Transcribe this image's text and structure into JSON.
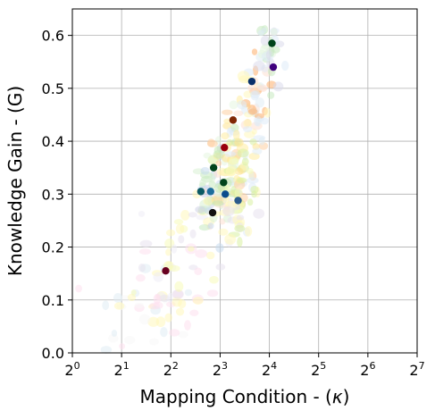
{
  "chart_data": {
    "type": "scatter",
    "title": "",
    "xlabel_main": "Mapping Condition - (",
    "xlabel_symbol": "κ",
    "xlabel_end": ")",
    "ylabel": "Knowledge Gain - (G)",
    "x_scale": "log2",
    "xlim": [
      1,
      128
    ],
    "ylim": [
      0,
      0.65
    ],
    "x_ticks": [
      {
        "value": 1,
        "base": "2",
        "exp": "0"
      },
      {
        "value": 2,
        "base": "2",
        "exp": "1"
      },
      {
        "value": 4,
        "base": "2",
        "exp": "2"
      },
      {
        "value": 8,
        "base": "2",
        "exp": "3"
      },
      {
        "value": 16,
        "base": "2",
        "exp": "4"
      },
      {
        "value": 32,
        "base": "2",
        "exp": "5"
      },
      {
        "value": 64,
        "base": "2",
        "exp": "6"
      },
      {
        "value": 128,
        "base": "2",
        "exp": "7"
      }
    ],
    "y_ticks": [
      {
        "value": 0.0,
        "label": "0.0"
      },
      {
        "value": 0.1,
        "label": "0.1"
      },
      {
        "value": 0.2,
        "label": "0.2"
      },
      {
        "value": 0.3,
        "label": "0.3"
      },
      {
        "value": 0.4,
        "label": "0.4"
      },
      {
        "value": 0.5,
        "label": "0.5"
      },
      {
        "value": 0.6,
        "label": "0.6"
      }
    ],
    "grid": true,
    "highlighted_points": [
      {
        "x": 3.72,
        "y": 0.155,
        "color": "#67001f"
      },
      {
        "x": 7.2,
        "y": 0.265,
        "color": "#111111"
      },
      {
        "x": 6.1,
        "y": 0.305,
        "color": "#0b5a64"
      },
      {
        "x": 7.0,
        "y": 0.305,
        "color": "#1f6e9c"
      },
      {
        "x": 8.6,
        "y": 0.3,
        "color": "#0b4d8c"
      },
      {
        "x": 10.3,
        "y": 0.288,
        "color": "#2b5a8c"
      },
      {
        "x": 8.4,
        "y": 0.322,
        "color": "#00441b"
      },
      {
        "x": 7.3,
        "y": 0.35,
        "color": "#00441b"
      },
      {
        "x": 8.5,
        "y": 0.388,
        "color": "#99000d"
      },
      {
        "x": 9.6,
        "y": 0.44,
        "color": "#7f2704"
      },
      {
        "x": 12.5,
        "y": 0.513,
        "color": "#08306b"
      },
      {
        "x": 16.9,
        "y": 0.54,
        "color": "#3f007d"
      },
      {
        "x": 16.6,
        "y": 0.585,
        "color": "#00441b"
      }
    ],
    "clouds": [
      {
        "cx": 3.0,
        "cy": 0.075,
        "sx": 0.55,
        "sy": 0.05,
        "n": 40,
        "colors": [
          "#fde0ef",
          "#fff7bc",
          "#e0ecf4",
          "#f7f7f7"
        ]
      },
      {
        "cx": 4.6,
        "cy": 0.17,
        "sx": 0.45,
        "sy": 0.055,
        "n": 45,
        "colors": [
          "#fde0ef",
          "#fff7bc",
          "#e7e1ef",
          "#f7fcb9",
          "#efedf5"
        ]
      },
      {
        "cx": 7.3,
        "cy": 0.3,
        "sx": 0.22,
        "sy": 0.035,
        "n": 55,
        "colors": [
          "#c6dbef",
          "#d9f0d3",
          "#fee0d2",
          "#c7e9c0",
          "#fff7bc",
          "#d0d1e6"
        ]
      },
      {
        "cx": 9.8,
        "cy": 0.36,
        "sx": 0.22,
        "sy": 0.05,
        "n": 90,
        "colors": [
          "#fff7bc",
          "#ffeda0",
          "#fee391",
          "#d9f0a3",
          "#c7e9b4",
          "#fdd0a2",
          "#e5f5e0",
          "#deebf7"
        ]
      },
      {
        "cx": 12.6,
        "cy": 0.46,
        "sx": 0.2,
        "sy": 0.04,
        "n": 45,
        "colors": [
          "#fee0d2",
          "#fdae6b",
          "#fff7bc",
          "#deebf7",
          "#e0ecf4"
        ]
      },
      {
        "cx": 16.2,
        "cy": 0.56,
        "sx": 0.12,
        "sy": 0.035,
        "n": 30,
        "colors": [
          "#c7e9c0",
          "#dadaeb",
          "#e5f5e0",
          "#deebf7"
        ]
      },
      {
        "cx": 10.8,
        "cy": 0.27,
        "sx": 0.18,
        "sy": 0.04,
        "n": 30,
        "colors": [
          "#f7fcb9",
          "#d9f0a3",
          "#fff7bc",
          "#e7e1ef"
        ]
      }
    ]
  }
}
